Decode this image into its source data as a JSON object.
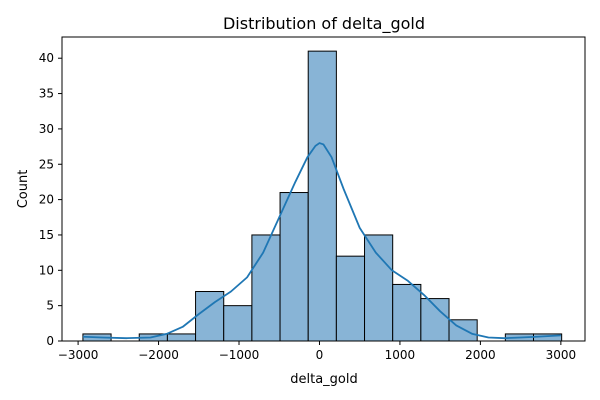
{
  "chart_data": {
    "type": "bar",
    "title": "Distribution of delta_gold",
    "xlabel": "delta_gold",
    "ylabel": "Count",
    "xlim": [
      -3200,
      3300
    ],
    "ylim": [
      0,
      43
    ],
    "xticks": [
      -3000,
      -2000,
      -1000,
      0,
      1000,
      2000,
      3000
    ],
    "yticks": [
      0,
      5,
      10,
      15,
      20,
      25,
      30,
      35,
      40
    ],
    "bins": [
      {
        "x0": -2940,
        "x1": -2590,
        "count": 1
      },
      {
        "x0": -2240,
        "x1": -1890,
        "count": 1
      },
      {
        "x0": -1890,
        "x1": -1540,
        "count": 1
      },
      {
        "x0": -1540,
        "x1": -1190,
        "count": 7
      },
      {
        "x0": -1190,
        "x1": -840,
        "count": 5
      },
      {
        "x0": -840,
        "x1": -490,
        "count": 15
      },
      {
        "x0": -490,
        "x1": -140,
        "count": 21
      },
      {
        "x0": -140,
        "x1": 210,
        "count": 41
      },
      {
        "x0": 210,
        "x1": 560,
        "count": 12
      },
      {
        "x0": 560,
        "x1": 910,
        "count": 15
      },
      {
        "x0": 910,
        "x1": 1260,
        "count": 8
      },
      {
        "x0": 1260,
        "x1": 1610,
        "count": 6
      },
      {
        "x0": 1610,
        "x1": 1960,
        "count": 3
      },
      {
        "x0": 2310,
        "x1": 2660,
        "count": 1
      },
      {
        "x0": 2660,
        "x1": 3010,
        "count": 1
      }
    ],
    "kde": {
      "x": [
        -2940,
        -2700,
        -2400,
        -2100,
        -1900,
        -1700,
        -1500,
        -1300,
        -1100,
        -900,
        -700,
        -500,
        -300,
        -150,
        -50,
        0,
        50,
        150,
        300,
        500,
        700,
        900,
        1100,
        1300,
        1500,
        1700,
        1900,
        2100,
        2300,
        2500,
        2700,
        3000
      ],
      "y": [
        0.6,
        0.5,
        0.4,
        0.5,
        1.0,
        2.0,
        3.8,
        5.5,
        7.0,
        9.0,
        12.5,
        17.5,
        22.5,
        26.0,
        27.6,
        28.0,
        27.8,
        26.0,
        21.5,
        16.0,
        12.5,
        10.0,
        8.5,
        6.5,
        4.2,
        2.2,
        1.0,
        0.5,
        0.4,
        0.5,
        0.6,
        0.8
      ]
    },
    "colors": {
      "bar_fill": "#88b4d6",
      "bar_edge": "#000000",
      "kde_line": "#1f77b4"
    },
    "grid": false,
    "legend": false
  }
}
